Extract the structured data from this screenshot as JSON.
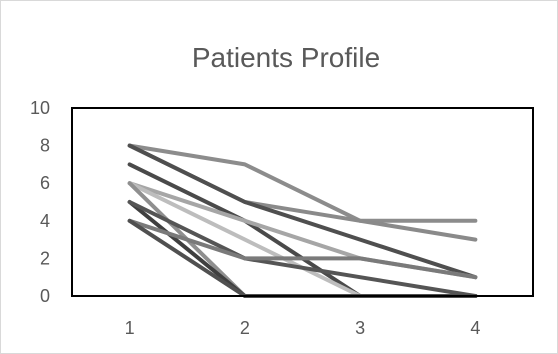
{
  "chart_data": {
    "type": "line",
    "title": "Patients Profile",
    "xlabel": "",
    "ylabel": "",
    "x": [
      1,
      2,
      3,
      4
    ],
    "ylim": [
      0,
      10
    ],
    "yticks": [
      0,
      2,
      4,
      6,
      8,
      10
    ],
    "grid": false,
    "legend": "none",
    "series": [
      {
        "values": [
          8,
          7,
          4,
          4
        ],
        "color": "#8c8c8c"
      },
      {
        "values": [
          8,
          5,
          4,
          3
        ],
        "color": "#8a8a8a"
      },
      {
        "values": [
          8,
          5,
          3,
          1
        ],
        "color": "#4f4f4f"
      },
      {
        "values": [
          7,
          4,
          0,
          0
        ],
        "color": "#4a4a4a"
      },
      {
        "values": [
          6,
          4,
          2,
          1
        ],
        "color": "#a6a6a6"
      },
      {
        "values": [
          6,
          3,
          0,
          0
        ],
        "color": "#bdbdbd"
      },
      {
        "values": [
          6,
          0,
          0,
          0
        ],
        "color": "#8f8f8f"
      },
      {
        "values": [
          5,
          0,
          0,
          0
        ],
        "color": "#3f3f3f"
      },
      {
        "values": [
          5,
          2,
          1,
          0
        ],
        "color": "#555555"
      },
      {
        "values": [
          4,
          2,
          2,
          1
        ],
        "color": "#7a7a7a"
      },
      {
        "values": [
          4,
          0,
          0,
          0
        ],
        "color": "#505050"
      }
    ]
  }
}
